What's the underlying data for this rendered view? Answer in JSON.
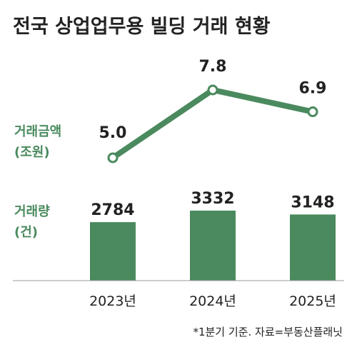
{
  "colors": {
    "accent": "#4a8a5e",
    "text": "#222222",
    "axis": "#9a9a9a"
  },
  "title": "전국 상업업무용 빌딩 거래 현황",
  "note": "*1분기 기준. 자료=부동산플래닛",
  "chart_data": [
    {
      "type": "line",
      "label_lines": [
        "거래금액",
        "(조원)"
      ],
      "categories": [
        "2023년",
        "2024년",
        "2025년"
      ],
      "values": [
        5.0,
        7.8,
        6.9
      ],
      "value_labels": [
        "5.0",
        "7.8",
        "6.9"
      ]
    },
    {
      "type": "bar",
      "label_lines": [
        "거래량",
        "(건)"
      ],
      "categories": [
        "2023년",
        "2024년",
        "2025년"
      ],
      "values": [
        2784,
        3332,
        3148
      ]
    }
  ]
}
